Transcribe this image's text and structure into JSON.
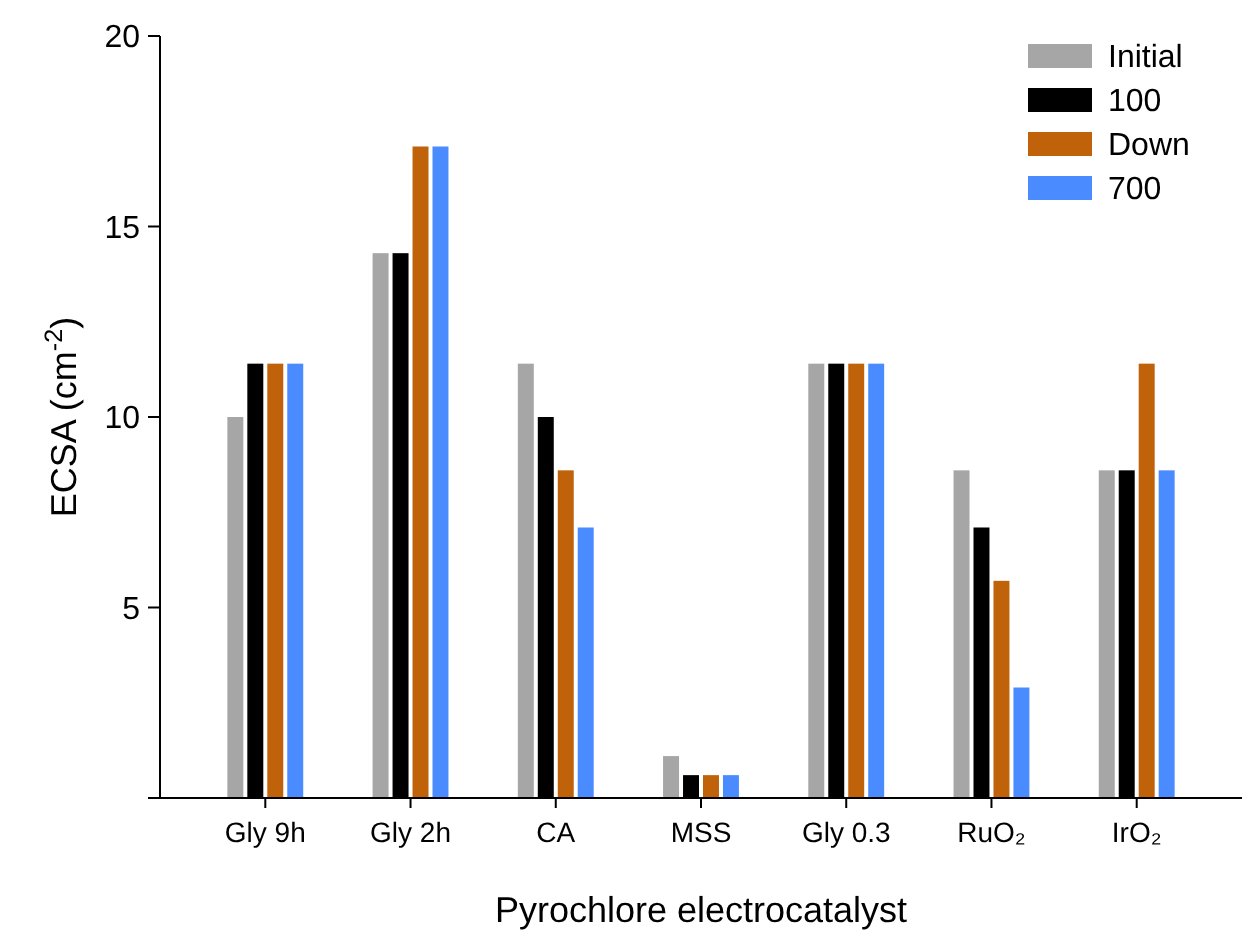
{
  "chart_data": {
    "type": "bar",
    "xlabel": "Pyrochlore electrocatalyst",
    "ylabel": "ECSA (cm$^{-2}$)",
    "categories": [
      "Gly 9h",
      "Gly 2h",
      "CA",
      "MSS",
      "Gly 0.3",
      "RuO₂",
      "IrO₂"
    ],
    "series": [
      {
        "name": "Initial",
        "color": "#a6a6a6",
        "values": [
          10,
          14.3,
          11.4,
          1.1,
          11.4,
          8.6,
          8.6
        ]
      },
      {
        "name": "100",
        "color": "#000000",
        "values": [
          11.4,
          14.3,
          10,
          0.6,
          11.4,
          7.1,
          8.6
        ]
      },
      {
        "name": "Down",
        "color": "#c0620a",
        "values": [
          11.4,
          17.1,
          8.6,
          0.6,
          11.4,
          5.7,
          11.4
        ]
      },
      {
        "name": "700",
        "color": "#4a8cff",
        "values": [
          11.4,
          17.1,
          7.1,
          0.6,
          11.4,
          2.9,
          8.6
        ]
      }
    ],
    "ylim": [
      0,
      20
    ],
    "yticks": [
      {
        "value": 0,
        "label": null
      },
      5,
      10,
      15,
      20
    ],
    "grid": false,
    "legend": "top right"
  }
}
